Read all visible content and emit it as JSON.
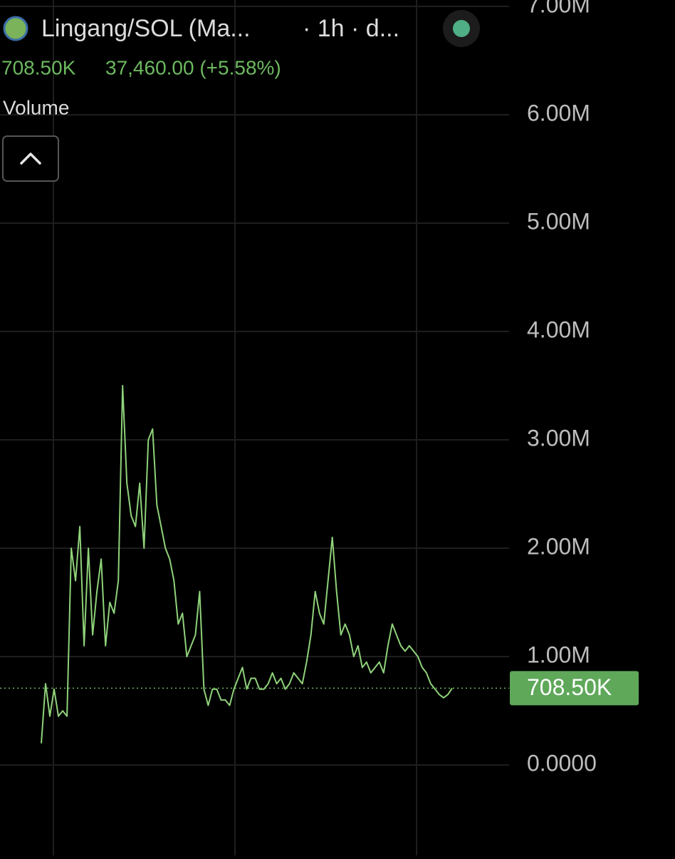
{
  "header": {
    "pair": "Lingang/SOL (Ma...",
    "interval": "· 1h · d...",
    "change": "37,460.00 (+5.58%)",
    "indicator": "Volume"
  },
  "chart_data": {
    "type": "line",
    "color": "#8fd27a",
    "values": [
      200000,
      750000,
      450000,
      700000,
      450000,
      500000,
      450000,
      2000000,
      1700000,
      2200000,
      1100000,
      2000000,
      1200000,
      1600000,
      1900000,
      1100000,
      1500000,
      1400000,
      1700000,
      3500000,
      2600000,
      2300000,
      2200000,
      2600000,
      2000000,
      3000000,
      3100000,
      2400000,
      2200000,
      2000000,
      1900000,
      1700000,
      1300000,
      1400000,
      1000000,
      1100000,
      1200000,
      1600000,
      700000,
      550000,
      700000,
      700000,
      600000,
      600000,
      550000,
      700000,
      800000,
      900000,
      700000,
      800000,
      800000,
      700000,
      700000,
      750000,
      850000,
      750000,
      800000,
      700000,
      750000,
      850000,
      800000,
      750000,
      950000,
      1200000,
      1600000,
      1400000,
      1300000,
      1700000,
      2100000,
      1600000,
      1200000,
      1300000,
      1200000,
      1000000,
      1100000,
      900000,
      950000,
      850000,
      900000,
      950000,
      850000,
      1100000,
      1300000,
      1200000,
      1100000,
      1050000,
      1100000,
      1050000,
      1000000,
      900000,
      850000,
      750000,
      700000,
      650000,
      620000,
      650000,
      708500
    ],
    "ylim": [
      -835000,
      7059000
    ],
    "yticks": [
      {
        "value": 0,
        "label": "0.0000"
      },
      {
        "value": 1000000,
        "label": "1.00M"
      },
      {
        "value": 2000000,
        "label": "2.00M"
      },
      {
        "value": 3000000,
        "label": "3.00M"
      },
      {
        "value": 4000000,
        "label": "4.00M"
      },
      {
        "value": 5000000,
        "label": "5.00M"
      },
      {
        "value": 6000000,
        "label": "6.00M"
      },
      {
        "value": 7000000,
        "label": "7.00M"
      }
    ],
    "last_price": {
      "value": 708500,
      "label": "708.50K"
    },
    "grid": true
  }
}
